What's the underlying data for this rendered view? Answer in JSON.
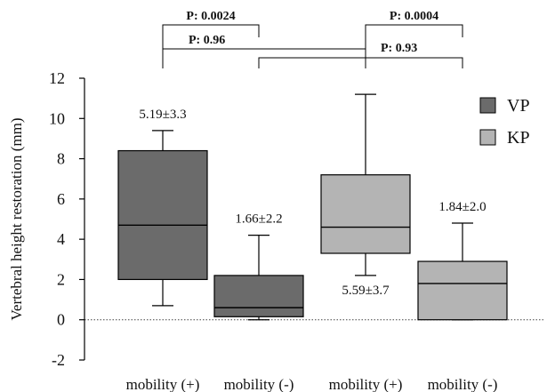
{
  "chart_data": {
    "type": "box",
    "title": "",
    "ylabel": "Vertebral height restoration (mm)",
    "xlabel": "",
    "ylim": [
      -2,
      12
    ],
    "yticks": [
      -2,
      0,
      2,
      4,
      6,
      8,
      10,
      12
    ],
    "ytick_labels": [
      "-2",
      "0",
      "2",
      "4",
      "6",
      "8",
      "10",
      "12"
    ],
    "reference_line": 0,
    "grid": false,
    "legend_position": "top-right",
    "legend": [
      {
        "label": "VP",
        "color": "#6b6b6b"
      },
      {
        "label": "KP",
        "color": "#b4b4b4"
      }
    ],
    "boxes": [
      {
        "category": "mobility (+)",
        "series": "VP",
        "color": "#6b6b6b",
        "whisker_low": 0.7,
        "q1": 2.0,
        "median": 4.7,
        "q3": 8.4,
        "whisker_high": 9.4,
        "annotation": "5.19±3.3",
        "annotation_position": "above"
      },
      {
        "category": "mobility (-)",
        "series": "VP",
        "color": "#6b6b6b",
        "whisker_low": 0.0,
        "q1": 0.15,
        "median": 0.6,
        "q3": 2.2,
        "whisker_high": 4.2,
        "annotation": "1.66±2.2",
        "annotation_position": "above"
      },
      {
        "category": "mobility (+)",
        "series": "KP",
        "color": "#b4b4b4",
        "whisker_low": 2.2,
        "q1": 3.3,
        "median": 4.6,
        "q3": 7.2,
        "whisker_high": 11.2,
        "annotation": "5.59±3.7",
        "annotation_position": "below"
      },
      {
        "category": "mobility (-)",
        "series": "KP",
        "color": "#b4b4b4",
        "whisker_low": 0.0,
        "q1": 0.0,
        "median": 1.8,
        "q3": 2.9,
        "whisker_high": 4.8,
        "annotation": "1.84±2.0",
        "annotation_position": "above"
      }
    ],
    "comparisons": [
      {
        "from": 0,
        "to": 1,
        "level": 1,
        "label": "P: 0.0024"
      },
      {
        "from": 2,
        "to": 3,
        "level": 1,
        "label": "P: 0.0004"
      },
      {
        "from": 0,
        "to": 2,
        "level": 2,
        "label": "P: 0.96"
      },
      {
        "from": 1,
        "to": 3,
        "level": 3,
        "label": "P: 0.93"
      }
    ]
  }
}
